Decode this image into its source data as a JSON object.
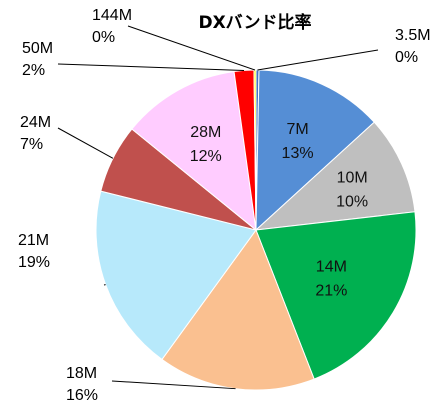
{
  "chart_data": {
    "type": "pie",
    "title": "DXバンド比率",
    "slices": [
      {
        "name": "3.5M",
        "value": 0.3,
        "label": "0%",
        "color": "#4472C4"
      },
      {
        "name": "7M",
        "value": 13,
        "label": "13%",
        "color": "#558ED5"
      },
      {
        "name": "10M",
        "value": 10,
        "label": "10%",
        "color": "#BFBFBF"
      },
      {
        "name": "14M",
        "value": 21,
        "label": "21%",
        "color": "#00B050"
      },
      {
        "name": "18M",
        "value": 16,
        "label": "16%",
        "color": "#FAC090"
      },
      {
        "name": "21M",
        "value": 19,
        "label": "19%",
        "color": "#B7E9FB"
      },
      {
        "name": "24M",
        "value": 7,
        "label": "7%",
        "color": "#C0504D"
      },
      {
        "name": "28M",
        "value": 12,
        "label": "12%",
        "color": "#FFCCFF"
      },
      {
        "name": "50M",
        "value": 2,
        "label": "2%",
        "color": "#FF0000"
      },
      {
        "name": "144M",
        "value": 0.2,
        "label": "0%",
        "color": "#FFFF00"
      }
    ],
    "legend": "none"
  }
}
